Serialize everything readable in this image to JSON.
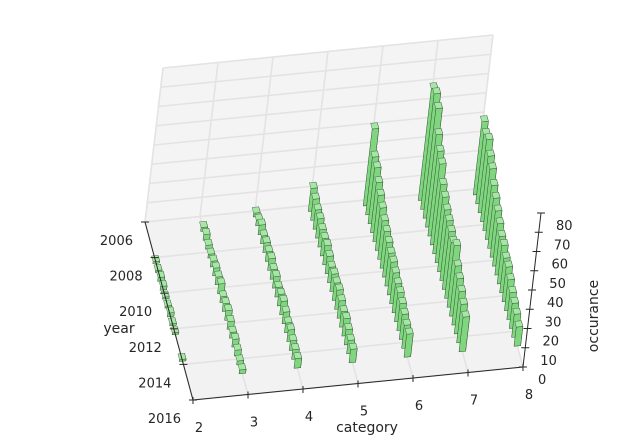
{
  "chart_data": {
    "type": "bar",
    "projection": "3d",
    "title": "",
    "xlabel": "category",
    "ylabel": "year",
    "zlabel": "occurance",
    "x_ticks": [
      "2",
      "3",
      "4",
      "5",
      "6",
      "7",
      "8"
    ],
    "y_ticks": [
      "2006",
      "2008",
      "2010",
      "2012",
      "2014",
      "2016"
    ],
    "z_ticks": [
      "0",
      "10",
      "20",
      "30",
      "40",
      "50",
      "60",
      "70",
      "80"
    ],
    "xlim": [
      2,
      8
    ],
    "ylim": [
      2006,
      2016
    ],
    "zlim": [
      0,
      80
    ],
    "grid": true,
    "bar_color": "#7fd67f",
    "years": [
      2006,
      2006.5,
      2007,
      2007.5,
      2008,
      2008.5,
      2009,
      2009.5,
      2010,
      2010.5,
      2011,
      2011.5,
      2012,
      2012.5,
      2013,
      2013.5,
      2014,
      2014.5
    ],
    "series": [
      {
        "category": 2,
        "values": [
          0,
          0,
          0,
          0,
          1,
          1,
          2,
          2,
          1,
          1,
          2,
          1,
          1,
          0,
          0,
          1,
          0,
          0
        ]
      },
      {
        "category": 3,
        "values": [
          0,
          2,
          3,
          2,
          2,
          3,
          4,
          4,
          5,
          3,
          4,
          5,
          4,
          3,
          4,
          3,
          2,
          2
        ]
      },
      {
        "category": 4,
        "values": [
          2,
          3,
          5,
          4,
          5,
          5,
          6,
          5,
          6,
          5,
          6,
          7,
          6,
          5,
          6,
          5,
          5,
          5
        ]
      },
      {
        "category": 5,
        "values": [
          12,
          11,
          10,
          10,
          9,
          9,
          10,
          9,
          8,
          9,
          9,
          10,
          9,
          8,
          9,
          8,
          7,
          7
        ]
      },
      {
        "category": 6,
        "values": [
          40,
          30,
          29,
          26,
          24,
          22,
          20,
          19,
          18,
          17,
          17,
          16,
          15,
          15,
          14,
          13,
          12,
          12
        ]
      },
      {
        "category": 7,
        "values": [
          58,
          60,
          57,
          48,
          44,
          42,
          36,
          34,
          32,
          31,
          30,
          29,
          32,
          26,
          24,
          22,
          20,
          18
        ]
      },
      {
        "category": 8,
        "values": [
          38,
          36,
          38,
          34,
          32,
          28,
          26,
          24,
          22,
          20,
          20,
          18,
          18,
          16,
          14,
          13,
          12,
          10
        ]
      }
    ]
  }
}
